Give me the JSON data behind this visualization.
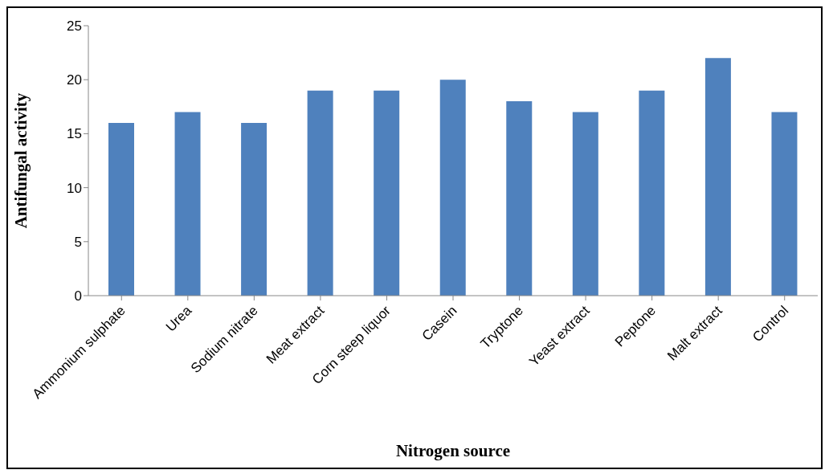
{
  "chart_data": {
    "type": "bar",
    "xlabel": "Nitrogen source",
    "ylabel": "Antifungal  activity",
    "categories": [
      "Ammonium sulphate",
      "Urea",
      "Sodium nitrate",
      "Meat extract",
      "Corn steep liquor",
      "Casein",
      "Tryptone",
      "Yeast extract",
      "Peptone",
      "Malt extract",
      "Control"
    ],
    "values": [
      16,
      17,
      16,
      19,
      19,
      20,
      18,
      17,
      19,
      22,
      17
    ],
    "color": "#4f81bd",
    "ylim": [
      0,
      25
    ],
    "yticks": [
      0,
      5,
      10,
      15,
      20,
      25
    ],
    "grid": false
  }
}
